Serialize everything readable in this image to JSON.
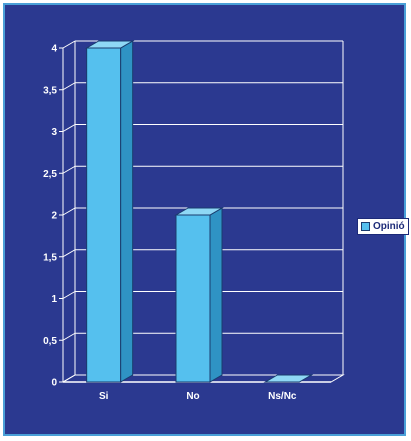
{
  "chart_data": {
    "type": "bar",
    "title": "",
    "xlabel": "",
    "ylabel": "",
    "categories": [
      "Si",
      "No",
      "Ns/Nc"
    ],
    "series": [
      {
        "name": "Opinió",
        "values": [
          4,
          2,
          0
        ]
      }
    ],
    "ylim": [
      0,
      4
    ],
    "yticks": [
      "0",
      "0,5",
      "1",
      "1,5",
      "2",
      "2,5",
      "3",
      "3,5",
      "4"
    ],
    "grid": true,
    "legend": "right",
    "three_d": true
  },
  "colors": {
    "background": "#2b3990",
    "frame": "#4aa0d8",
    "bar_front": "#55c0ee",
    "bar_side": "#2f93c4",
    "bar_top": "#8fd8f5",
    "grid": "#ffffff",
    "text": "#ffffff"
  }
}
